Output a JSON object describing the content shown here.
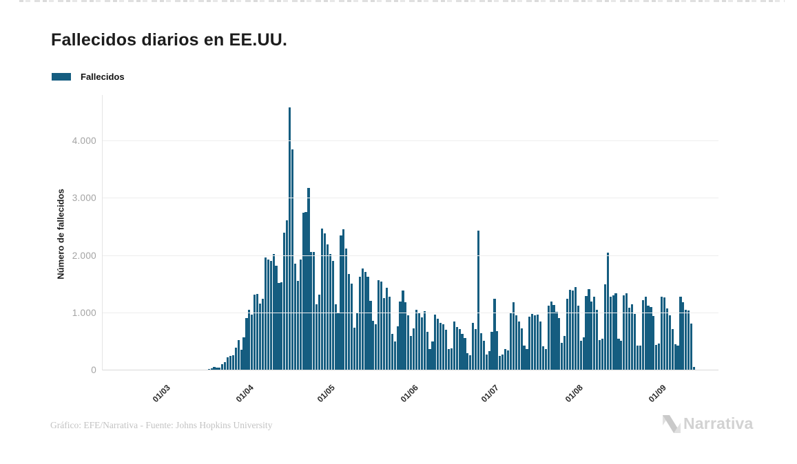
{
  "header": {
    "title": "Fallecidos diarios en EE.UU."
  },
  "legend": {
    "items": [
      {
        "label": "Fallecidos",
        "color": "#155d80"
      }
    ]
  },
  "chart_data": {
    "type": "bar",
    "title": "Fallecidos diarios en EE.UU.",
    "xlabel": "",
    "ylabel": "Número de fallecidos",
    "series_name": "Fallecidos",
    "bar_color": "#155d80",
    "ylim": [
      0,
      4600
    ],
    "y_ticks": [
      0,
      1000,
      2000,
      3000,
      4000
    ],
    "y_tick_labels": [
      "0",
      "1.000",
      "2.000",
      "3.000",
      "4.000"
    ],
    "x_tick_labels": [
      "01/03",
      "01/04",
      "01/05",
      "01/06",
      "01/07",
      "01/08",
      "01/09"
    ],
    "grid": "horizontal",
    "legend_position": "top-left",
    "dates": [
      "07/02",
      "08/02",
      "09/02",
      "10/02",
      "11/02",
      "12/02",
      "13/02",
      "14/02",
      "15/02",
      "16/02",
      "17/02",
      "18/02",
      "19/02",
      "20/02",
      "21/02",
      "22/02",
      "23/02",
      "24/02",
      "25/02",
      "26/02",
      "27/02",
      "28/02",
      "29/02",
      "01/03",
      "02/03",
      "03/03",
      "04/03",
      "05/03",
      "06/03",
      "07/03",
      "08/03",
      "09/03",
      "10/03",
      "11/03",
      "12/03",
      "13/03",
      "14/03",
      "15/03",
      "16/03",
      "17/03",
      "18/03",
      "19/03",
      "20/03",
      "21/03",
      "22/03",
      "23/03",
      "24/03",
      "25/03",
      "26/03",
      "27/03",
      "28/03",
      "29/03",
      "30/03",
      "31/03",
      "01/04",
      "02/04",
      "03/04",
      "04/04",
      "05/04",
      "06/04",
      "07/04",
      "08/04",
      "09/04",
      "10/04",
      "11/04",
      "12/04",
      "13/04",
      "14/04",
      "15/04",
      "16/04",
      "17/04",
      "18/04",
      "19/04",
      "20/04",
      "21/04",
      "22/04",
      "23/04",
      "24/04",
      "25/04",
      "26/04",
      "27/04",
      "28/04",
      "29/04",
      "30/04",
      "01/05",
      "02/05",
      "03/05",
      "04/05",
      "05/05",
      "06/05",
      "07/05",
      "08/05",
      "09/05",
      "10/05",
      "11/05",
      "12/05",
      "13/05",
      "14/05",
      "15/05",
      "16/05",
      "17/05",
      "18/05",
      "19/05",
      "20/05",
      "21/05",
      "22/05",
      "23/05",
      "24/05",
      "25/05",
      "26/05",
      "27/05",
      "28/05",
      "29/05",
      "30/05",
      "31/05",
      "01/06",
      "02/06",
      "03/06",
      "04/06",
      "05/06",
      "06/06",
      "07/06",
      "08/06",
      "09/06",
      "10/06",
      "11/06",
      "12/06",
      "13/06",
      "14/06",
      "15/06",
      "16/06",
      "17/06",
      "18/06",
      "19/06",
      "20/06",
      "21/06",
      "22/06",
      "23/06",
      "24/06",
      "25/06",
      "26/06",
      "27/06",
      "28/06",
      "29/06",
      "30/06",
      "01/07",
      "02/07",
      "03/07",
      "04/07",
      "05/07",
      "06/07",
      "07/07",
      "08/07",
      "09/07",
      "10/07",
      "11/07",
      "12/07",
      "13/07",
      "14/07",
      "15/07",
      "16/07",
      "17/07",
      "18/07",
      "19/07",
      "20/07",
      "21/07",
      "22/07",
      "23/07",
      "24/07",
      "25/07",
      "26/07",
      "27/07",
      "28/07",
      "29/07",
      "30/07",
      "31/07",
      "01/08",
      "02/08",
      "03/08",
      "04/08",
      "05/08",
      "06/08",
      "07/08",
      "08/08",
      "09/08",
      "10/08",
      "11/08",
      "12/08",
      "13/08",
      "14/08",
      "15/08",
      "16/08",
      "17/08",
      "18/08",
      "19/08",
      "20/08",
      "21/08",
      "22/08",
      "23/08",
      "24/08",
      "25/08",
      "26/08",
      "27/08",
      "28/08",
      "29/08",
      "30/08",
      "31/08",
      "01/09",
      "02/09",
      "03/09",
      "04/09",
      "05/09",
      "06/09",
      "07/09",
      "08/09",
      "09/09",
      "10/09",
      "11/09",
      "12/09",
      "13/09"
    ],
    "values": [
      0,
      0,
      0,
      0,
      0,
      0,
      0,
      0,
      0,
      0,
      0,
      0,
      0,
      0,
      0,
      0,
      0,
      0,
      0,
      0,
      0,
      0,
      1,
      1,
      5,
      2,
      4,
      1,
      3,
      4,
      3,
      4,
      6,
      8,
      3,
      10,
      11,
      12,
      18,
      23,
      41,
      57,
      49,
      46,
      111,
      140,
      225,
      247,
      268,
      400,
      525,
      363,
      573,
      912,
      1059,
      968,
      1321,
      1331,
      1165,
      1255,
      1970,
      1940,
      1906,
      2035,
      1830,
      1528,
      1535,
      2408,
      2618,
      4591,
      3857,
      1867,
      1561,
      1939,
      2751,
      2763,
      3179,
      2065,
      2065,
      1157,
      1324,
      2470,
      2390,
      2201,
      2031,
      1907,
      1154,
      1008,
      2350,
      2461,
      2129,
      1687,
      1510,
      750,
      1008,
      1630,
      1772,
      1715,
      1635,
      1218,
      865,
      808,
      1568,
      1552,
      1263,
      1436,
      1284,
      638,
      500,
      774,
      1199,
      1399,
      1193,
      960,
      605,
      730,
      1054,
      995,
      921,
      1036,
      672,
      373,
      507,
      975,
      906,
      834,
      800,
      714,
      373,
      382,
      851,
      759,
      722,
      637,
      566,
      305,
      267,
      825,
      722,
      2437,
      654,
      512,
      271,
      335,
      677,
      1246,
      683,
      252,
      271,
      376,
      352,
      993,
      1195,
      959,
      849,
      730,
      432,
      378,
      935,
      991,
      963,
      969,
      853,
      420,
      373,
      1126,
      1205,
      1140,
      1019,
      916,
      483,
      595,
      1244,
      1403,
      1395,
      1456,
      1134,
      516,
      582,
      1302,
      1416,
      1203,
      1290,
      1056,
      529,
      549,
      1504,
      2060,
      1288,
      1306,
      1342,
      553,
      512,
      1305,
      1344,
      1090,
      1155,
      985,
      436,
      428,
      1222,
      1281,
      1131,
      1106,
      950,
      450,
      463,
      1288,
      1270,
      1082,
      965,
      720,
      451,
      428,
      1281,
      1190,
      1062,
      1049,
      823,
      57
    ]
  },
  "footer": {
    "credit": "Gráfico: EFE/Narrativa - Fuente: Johns Hopkins University",
    "logo_text": "Narrativa"
  }
}
